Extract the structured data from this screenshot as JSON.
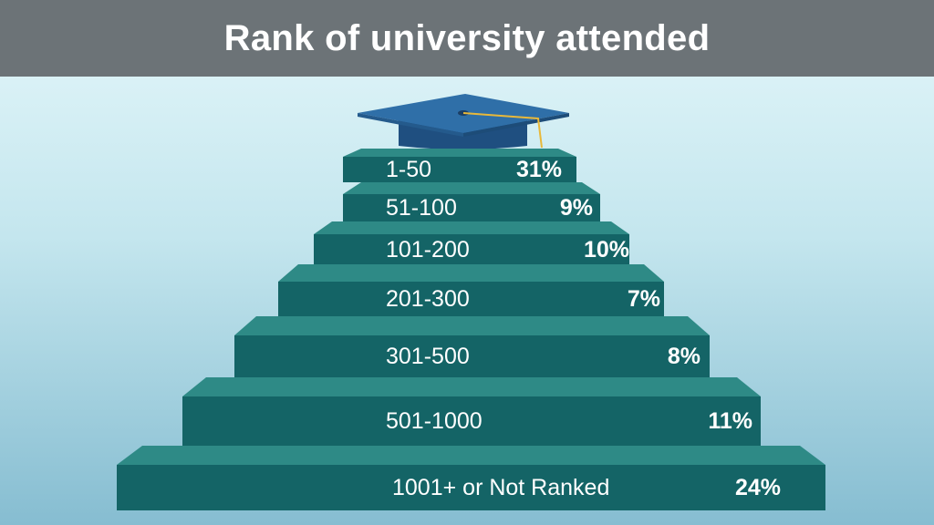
{
  "title": "Rank of university attended",
  "colors": {
    "header_bg": "#6c7377",
    "step_top": "#2e8a86",
    "step_front": "#146466",
    "cap": "#2f6fa8",
    "tassel": "#e8b83a"
  },
  "icon": "graduation-cap-icon",
  "steps": [
    {
      "rank": "1-50",
      "percent": "31%"
    },
    {
      "rank": "51-100",
      "percent": "9%"
    },
    {
      "rank": "101-200",
      "percent": "10%"
    },
    {
      "rank": "201-300",
      "percent": "7%"
    },
    {
      "rank": "301-500",
      "percent": "8%"
    },
    {
      "rank": "501-1000",
      "percent": "11%"
    },
    {
      "rank": "1001+ or Not Ranked",
      "percent": "24%"
    }
  ]
}
